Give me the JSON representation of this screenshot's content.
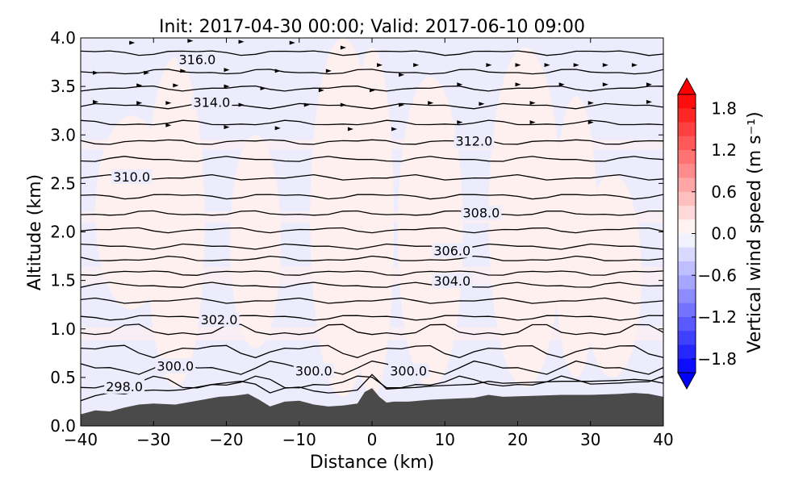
{
  "chart_data": {
    "type": "contour",
    "title": "Init: 2017-04-30 00:00; Valid: 2017-06-10 09:00",
    "xlabel": "Distance (km)",
    "ylabel": "Altitude (km)",
    "xlim": [
      -40,
      40
    ],
    "ylim": [
      0.0,
      4.0
    ],
    "x_ticks": [
      -40,
      -30,
      -20,
      -10,
      0,
      10,
      20,
      30,
      40
    ],
    "x_tick_labels": [
      "−40",
      "−30",
      "−20",
      "−10",
      "0",
      "10",
      "20",
      "30",
      "40"
    ],
    "y_ticks": [
      0.0,
      0.5,
      1.0,
      1.5,
      2.0,
      2.5,
      3.0,
      3.5,
      4.0
    ],
    "y_tick_labels": [
      "0.0",
      "0.5",
      "1.0",
      "1.5",
      "2.0",
      "2.5",
      "3.0",
      "3.5",
      "4.0"
    ],
    "background_field": "vertical wind speed, near zero everywhere (range about -0.2 to 0.2)",
    "contour_labels": [
      {
        "text": "316.0",
        "x": -24,
        "y": 3.77
      },
      {
        "text": "314.0",
        "x": -22,
        "y": 3.33
      },
      {
        "text": "312.0",
        "x": 14,
        "y": 2.93
      },
      {
        "text": "310.0",
        "x": -33,
        "y": 2.56
      },
      {
        "text": "308.0",
        "x": 15,
        "y": 2.19
      },
      {
        "text": "306.0",
        "x": 11,
        "y": 1.8
      },
      {
        "text": "304.0",
        "x": 11,
        "y": 1.49
      },
      {
        "text": "302.0",
        "x": -21,
        "y": 1.09
      },
      {
        "text": "300.0",
        "x": -27,
        "y": 0.61
      },
      {
        "text": "300.0",
        "x": -8,
        "y": 0.56
      },
      {
        "text": "300.0",
        "x": 5,
        "y": 0.56
      },
      {
        "text": "298.0",
        "x": -34,
        "y": 0.4
      }
    ],
    "contour_levels_y": [
      3.85,
      3.65,
      3.48,
      3.3,
      3.12,
      2.93,
      2.75,
      2.56,
      2.37,
      2.19,
      2.02,
      1.85,
      1.72,
      1.58,
      1.45,
      1.29,
      1.12,
      0.98,
      0.78,
      0.6,
      0.44,
      0.3
    ],
    "terrain_profile": {
      "x": [
        -40,
        -38,
        -36,
        -34,
        -32,
        -30,
        -27,
        -24,
        -21,
        -19,
        -17,
        -15.5,
        -14,
        -12,
        -10,
        -8,
        -6,
        -4,
        -2,
        -1,
        0,
        1,
        2,
        3,
        5,
        8,
        11,
        14,
        16,
        18,
        22,
        26,
        30,
        34,
        36,
        38,
        40
      ],
      "y": [
        0.12,
        0.16,
        0.15,
        0.19,
        0.22,
        0.23,
        0.22,
        0.26,
        0.3,
        0.31,
        0.33,
        0.27,
        0.2,
        0.25,
        0.26,
        0.22,
        0.2,
        0.21,
        0.23,
        0.35,
        0.39,
        0.3,
        0.24,
        0.25,
        0.25,
        0.27,
        0.28,
        0.29,
        0.32,
        0.3,
        0.31,
        0.32,
        0.32,
        0.33,
        0.34,
        0.33,
        0.3
      ]
    },
    "wind_arrows": [
      {
        "x": -33,
        "y": 3.95
      },
      {
        "x": -25,
        "y": 3.97
      },
      {
        "x": -18,
        "y": 3.96
      },
      {
        "x": -11,
        "y": 3.95
      },
      {
        "x": -4,
        "y": 3.9
      },
      {
        "x": 1,
        "y": 3.72
      },
      {
        "x": 6,
        "y": 3.72
      },
      {
        "x": -38,
        "y": 3.64
      },
      {
        "x": -31,
        "y": 3.64
      },
      {
        "x": -26,
        "y": 3.66
      },
      {
        "x": -20,
        "y": 3.67
      },
      {
        "x": -13,
        "y": 3.66
      },
      {
        "x": -6,
        "y": 3.66
      },
      {
        "x": 4,
        "y": 3.62
      },
      {
        "x": 16,
        "y": 3.72
      },
      {
        "x": 20,
        "y": 3.72
      },
      {
        "x": 24,
        "y": 3.72
      },
      {
        "x": 28,
        "y": 3.72
      },
      {
        "x": 32,
        "y": 3.72
      },
      {
        "x": 36,
        "y": 3.72
      },
      {
        "x": -32,
        "y": 3.51
      },
      {
        "x": -27,
        "y": 3.51
      },
      {
        "x": -20,
        "y": 3.5
      },
      {
        "x": -15,
        "y": 3.48
      },
      {
        "x": -7,
        "y": 3.46
      },
      {
        "x": 0,
        "y": 3.46
      },
      {
        "x": 12,
        "y": 3.52
      },
      {
        "x": 20,
        "y": 3.52
      },
      {
        "x": 26,
        "y": 3.52
      },
      {
        "x": 32,
        "y": 3.52
      },
      {
        "x": 38,
        "y": 3.52
      },
      {
        "x": -38,
        "y": 3.34
      },
      {
        "x": -32,
        "y": 3.33
      },
      {
        "x": -28,
        "y": 3.33
      },
      {
        "x": -18,
        "y": 3.31
      },
      {
        "x": -9,
        "y": 3.31
      },
      {
        "x": -4,
        "y": 3.31
      },
      {
        "x": 4,
        "y": 3.31
      },
      {
        "x": 8,
        "y": 3.33
      },
      {
        "x": 15,
        "y": 3.32
      },
      {
        "x": 22,
        "y": 3.33
      },
      {
        "x": 30,
        "y": 3.33
      },
      {
        "x": 38,
        "y": 3.34
      },
      {
        "x": -28,
        "y": 3.1
      },
      {
        "x": -20,
        "y": 3.08
      },
      {
        "x": -13,
        "y": 3.07
      },
      {
        "x": -3,
        "y": 3.06
      },
      {
        "x": 3,
        "y": 3.06
      },
      {
        "x": 12,
        "y": 3.13
      },
      {
        "x": 22,
        "y": 3.13
      },
      {
        "x": 30,
        "y": 3.13
      }
    ],
    "colorbar": {
      "label": "Vertical wind speed (m s⁻¹)",
      "min": -2.0,
      "max": 2.0,
      "ticks": [
        1.8,
        1.2,
        0.6,
        0.0,
        -0.6,
        -1.2,
        -1.8
      ],
      "tick_labels": [
        "1.8",
        "1.2",
        "0.6",
        "0.0",
        "−0.6",
        "−1.2",
        "−1.8"
      ],
      "n_levels": 20,
      "colormap": "bwr",
      "extend": "both"
    },
    "colors": {
      "terrain": "#4a4a4a",
      "field_negative": "#ececfd",
      "field_positive": "#fdf0ee",
      "contour": "#000000",
      "cbar_low": "#0000ff",
      "cbar_mid": "#ffffff",
      "cbar_high": "#ff0000"
    }
  }
}
